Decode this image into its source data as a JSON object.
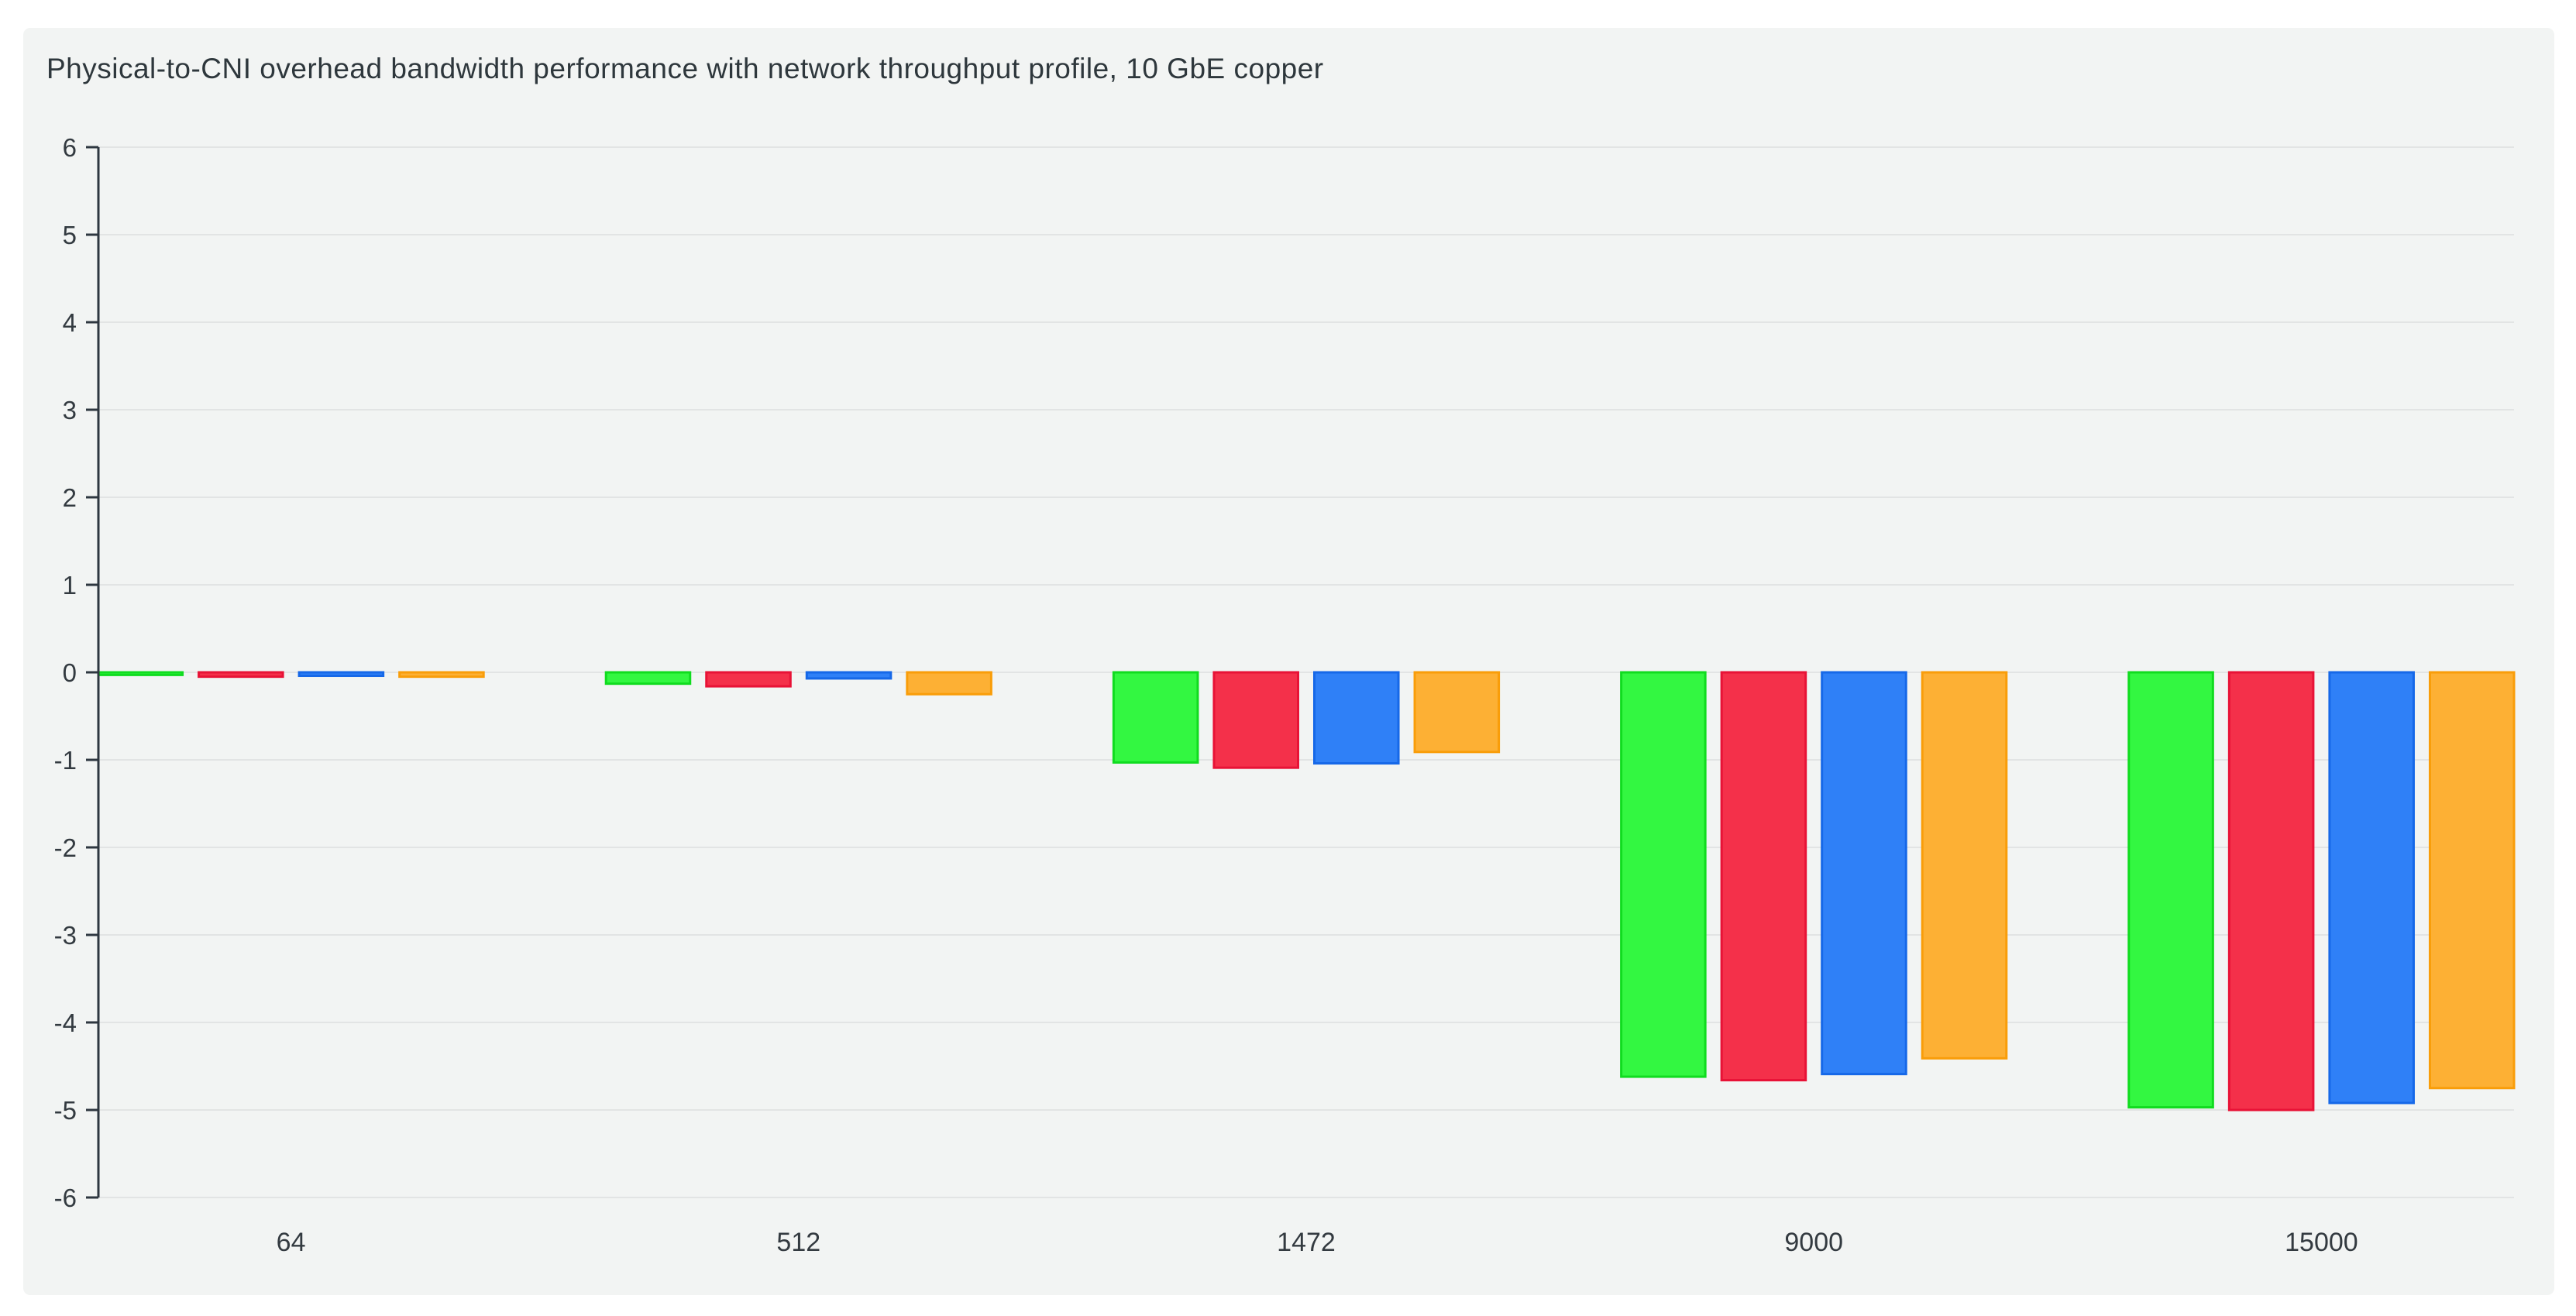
{
  "page": {
    "background": "#ffffff"
  },
  "card": {
    "background": "#f2f4f3"
  },
  "chart_data": {
    "type": "bar",
    "title": "Physical-to-CNI overhead bandwidth performance with network throughput profile, 10 GbE copper",
    "xlabel": "",
    "ylabel": "",
    "categories": [
      "64",
      "512",
      "1472",
      "9000",
      "15000"
    ],
    "series": [
      {
        "name": "green",
        "fill": "#33f741",
        "stroke": "#10dc1f",
        "values": [
          -0.03,
          -0.13,
          -1.03,
          -4.62,
          -4.97
        ]
      },
      {
        "name": "red",
        "fill": "#f4304a",
        "stroke": "#e81236",
        "values": [
          -0.05,
          -0.16,
          -1.09,
          -4.66,
          -5.0
        ]
      },
      {
        "name": "blue",
        "fill": "#2f80f7",
        "stroke": "#1668e8",
        "values": [
          -0.04,
          -0.07,
          -1.04,
          -4.59,
          -4.92
        ]
      },
      {
        "name": "orange",
        "fill": "#fdb034",
        "stroke": "#f99d09",
        "values": [
          -0.05,
          -0.25,
          -0.91,
          -4.41,
          -4.75
        ]
      }
    ],
    "ylim": [
      -6,
      6
    ],
    "yticks": [
      6,
      5,
      4,
      3,
      2,
      1,
      0,
      -1,
      -2,
      -3,
      -4,
      -5,
      -6
    ],
    "grid": true,
    "legend_position": "none",
    "colors": {
      "axis": "#2e3740",
      "grid": "#e2e4e4",
      "tick_label": "#333a40",
      "title": "#2e373c"
    }
  }
}
